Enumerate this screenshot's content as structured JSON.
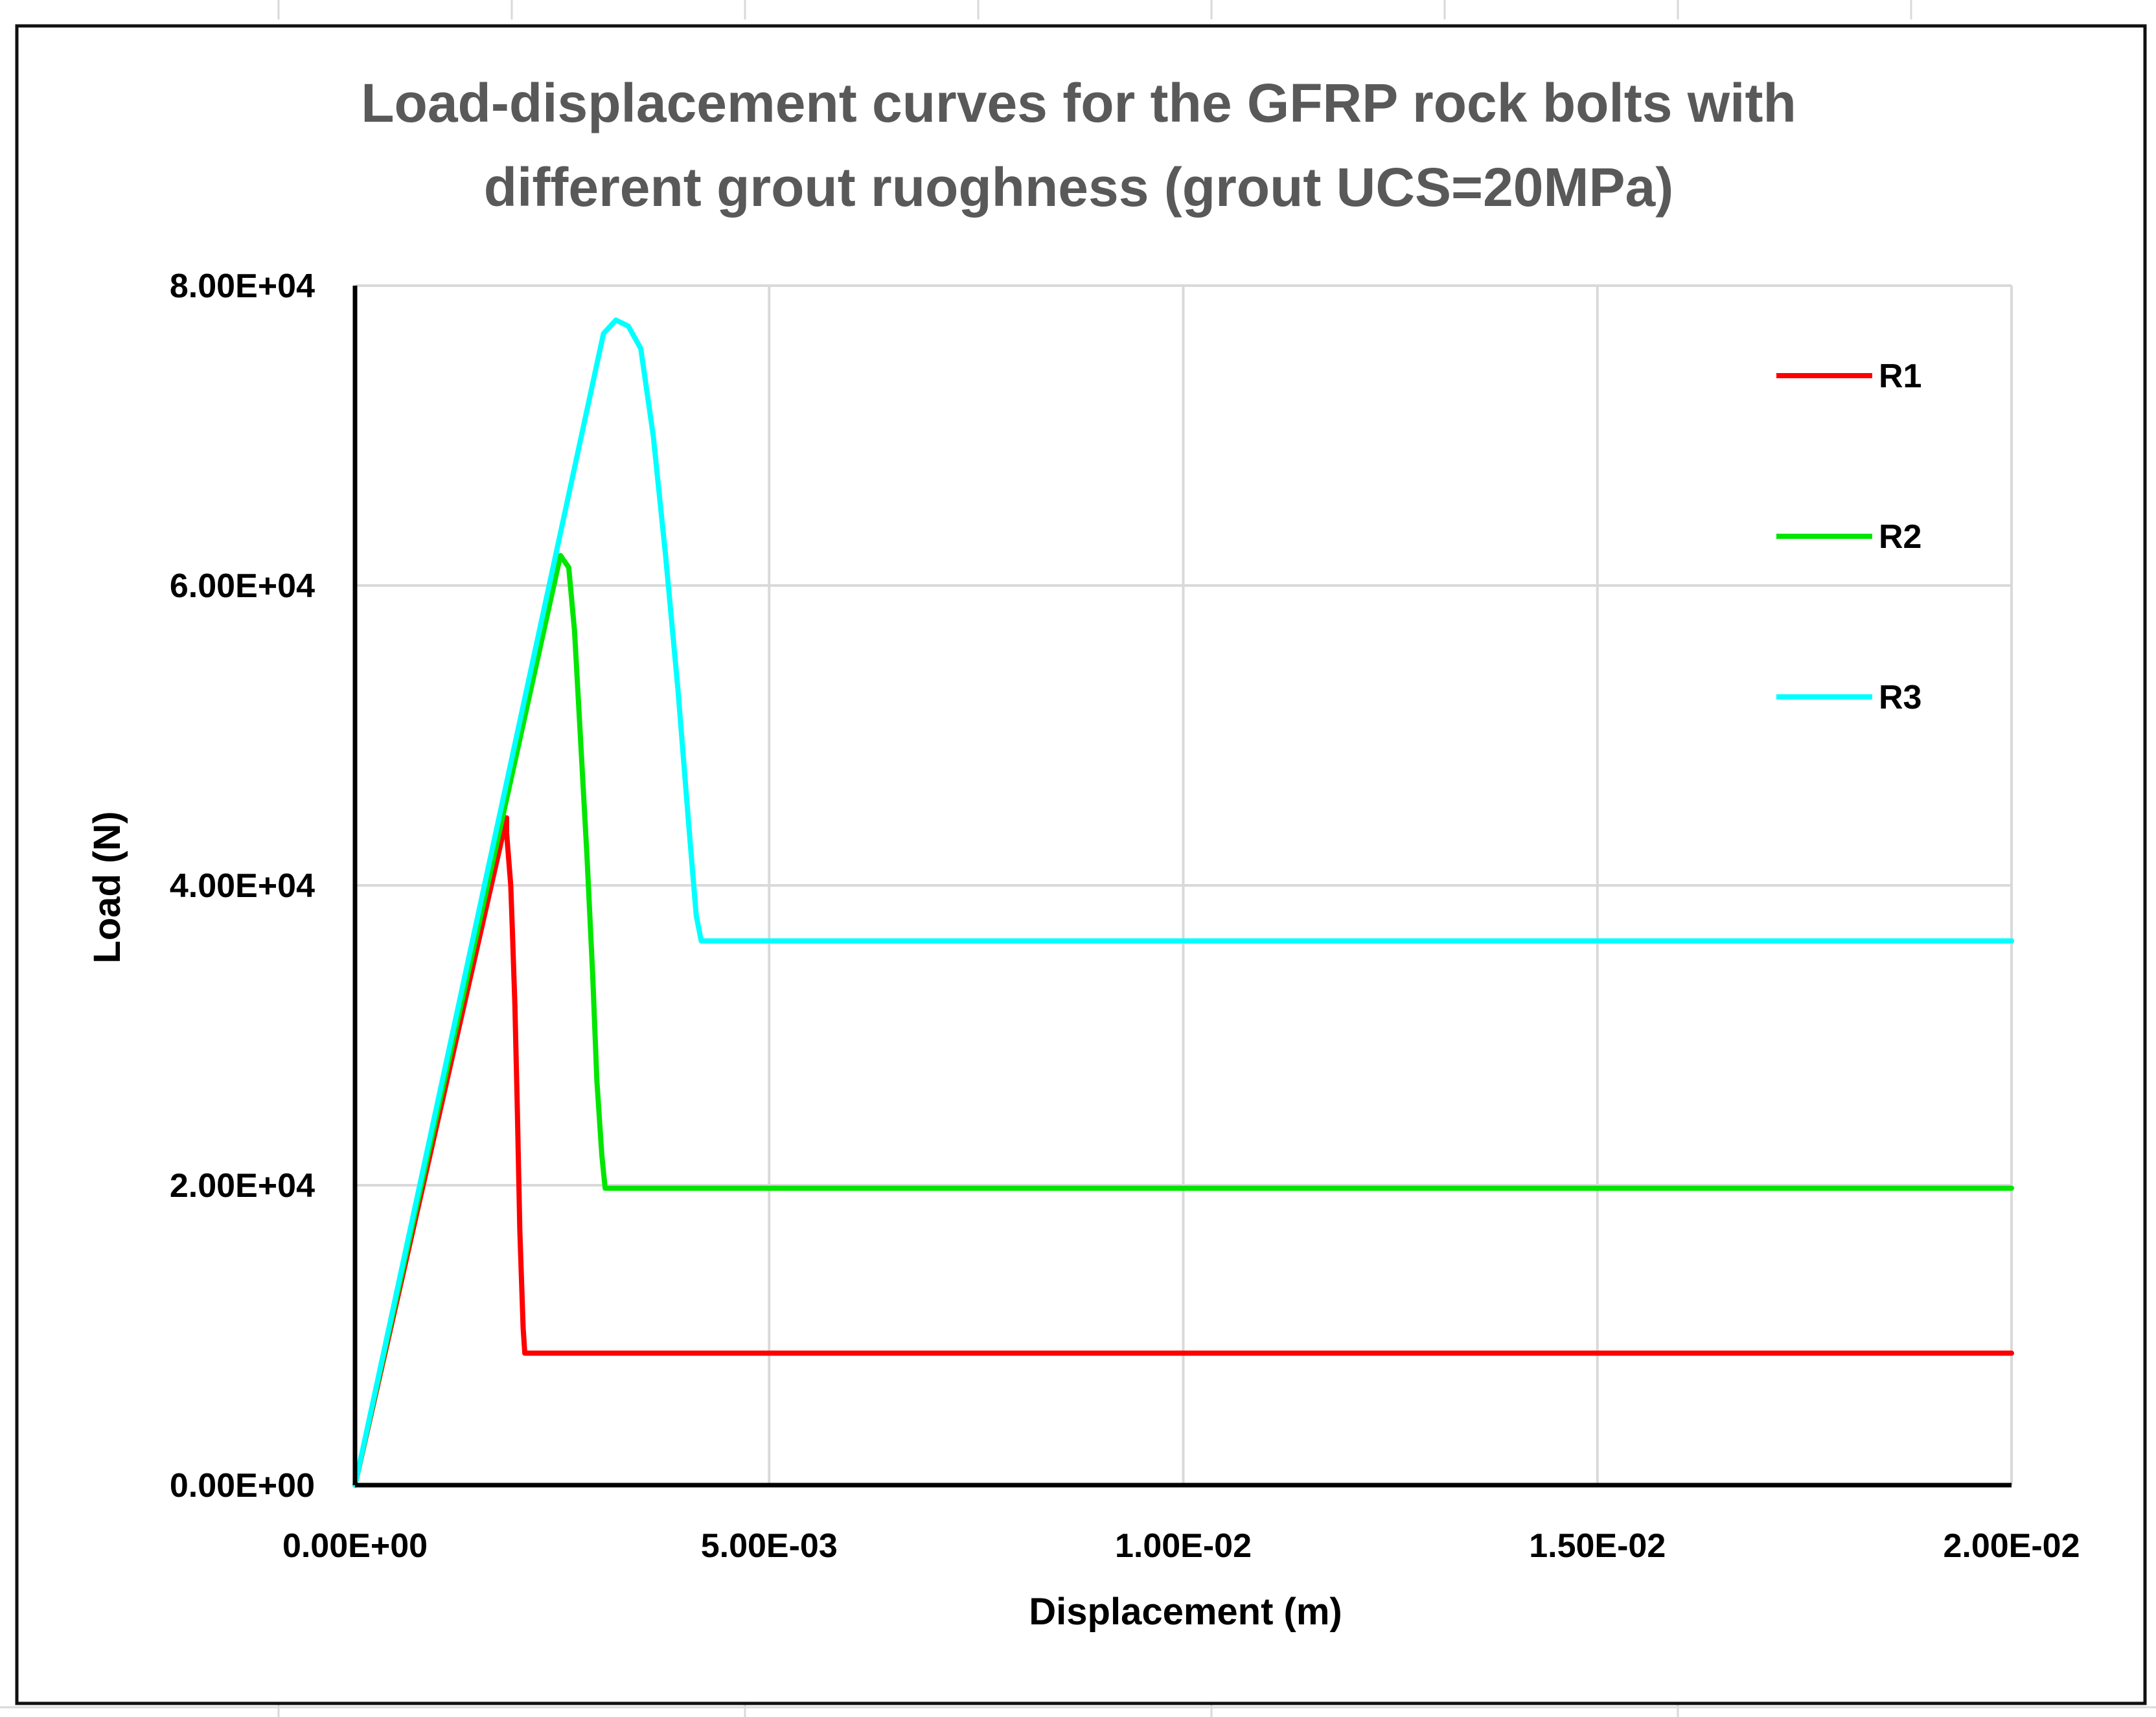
{
  "colors": {
    "R1": "#ff0000",
    "R2": "#00e600",
    "R3": "#00ffff",
    "title": "#595959",
    "grid": "#d9d9d9"
  },
  "chart_data": {
    "type": "line",
    "title_lines": [
      "Load-displacement curves for the GFRP rock bolts with",
      "different grout ruoghness (grout UCS=20MPa)"
    ],
    "xlabel": "Displacement (m)",
    "ylabel": "Load (N)",
    "xlim": [
      0,
      0.02
    ],
    "ylim": [
      0,
      80000
    ],
    "x_ticks": [
      0,
      0.005,
      0.01,
      0.015,
      0.02
    ],
    "x_tick_labels": [
      "0.00E+00",
      "5.00E-03",
      "1.00E-02",
      "1.50E-02",
      "2.00E-02"
    ],
    "y_ticks": [
      0,
      20000,
      40000,
      60000,
      80000
    ],
    "y_tick_labels": [
      "0.00E+00",
      "2.00E+04",
      "4.00E+04",
      "6.00E+04",
      "8.00E+04"
    ],
    "grid": true,
    "legend_position": "top-right",
    "series": [
      {
        "name": "R1",
        "color": "#ff0000",
        "points": [
          [
            0,
            0
          ],
          [
            0.00183,
            44500
          ],
          [
            0.00183,
            43500
          ],
          [
            0.00188,
            40000
          ],
          [
            0.0019,
            37000
          ],
          [
            0.00193,
            32000
          ],
          [
            0.00196,
            25000
          ],
          [
            0.00199,
            17000
          ],
          [
            0.00203,
            10500
          ],
          [
            0.00205,
            8800
          ],
          [
            0.02,
            8800
          ]
        ]
      },
      {
        "name": "R2",
        "color": "#00e600",
        "points": [
          [
            0,
            0
          ],
          [
            0.00248,
            62000
          ],
          [
            0.00258,
            61200
          ],
          [
            0.00265,
            57000
          ],
          [
            0.00272,
            50000
          ],
          [
            0.0028,
            42000
          ],
          [
            0.00287,
            34000
          ],
          [
            0.00292,
            27000
          ],
          [
            0.00298,
            22000
          ],
          [
            0.00302,
            19800
          ],
          [
            0.02,
            19800
          ]
        ]
      },
      {
        "name": "R3",
        "color": "#00ffff",
        "points": [
          [
            0,
            0
          ],
          [
            0.003,
            76800
          ],
          [
            0.00315,
            77700
          ],
          [
            0.0033,
            77300
          ],
          [
            0.00345,
            75800
          ],
          [
            0.0036,
            70000
          ],
          [
            0.00375,
            62000
          ],
          [
            0.0039,
            53000
          ],
          [
            0.00403,
            44000
          ],
          [
            0.00412,
            38000
          ],
          [
            0.00418,
            36300
          ],
          [
            0.02,
            36300
          ]
        ]
      }
    ]
  }
}
